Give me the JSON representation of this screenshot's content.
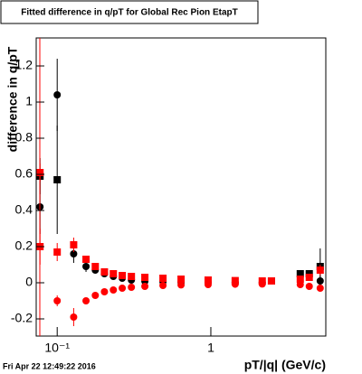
{
  "chart_data": {
    "type": "scatter",
    "title": "Fitted difference in q/pT for Global Rec Pion EtapT",
    "x_label": "pT/|q| (GeV/c)",
    "y_label": "difference in q/pT",
    "timestamp": "Fri Apr 22 12:49:22 2016",
    "log_x": true,
    "xlim": [
      0.073,
      5.6
    ],
    "ylim": [
      -0.295,
      1.355
    ],
    "xticks": [
      {
        "value": 0.1,
        "label": "10⁻¹"
      },
      1
    ],
    "yticks": [
      -0.2,
      0,
      0.2,
      0.4,
      0.6,
      0.8,
      1,
      1.2
    ],
    "series": [
      {
        "color": "#000000",
        "marker": "circle",
        "x": [
          0.0773,
          0.1,
          0.128,
          0.154,
          0.177,
          0.203,
          0.232,
          0.265,
          0.304,
          0.372,
          0.488,
          0.64,
          0.96,
          1.44,
          2.16,
          5.15
        ],
        "values": [
          0.42,
          1.04,
          0.16,
          0.09,
          0.07,
          0.05,
          0.035,
          0.025,
          0.015,
          0.008,
          0.005,
          0.003,
          0.001,
          0.001,
          0.002,
          0.01
        ],
        "errors": [
          0.15,
          0.2,
          0.05,
          0.03,
          0.02,
          0.015,
          0.01,
          0.008,
          0.005,
          0.004,
          0.003,
          0.003,
          0.002,
          0.002,
          0.003,
          0.05
        ]
      },
      {
        "color": "#000000",
        "marker": "square",
        "x": [
          0.0773,
          0.1,
          2.48,
          3.82,
          4.37,
          5.15
        ],
        "values": [
          0.59,
          0.57,
          0.01,
          0.05,
          0.05,
          0.09
        ],
        "errors": [
          0.1,
          0.3,
          0.005,
          0.02,
          0.02,
          0.1
        ]
      },
      {
        "color": "#ff0000",
        "marker": "square",
        "x": [
          0.0773,
          0.0773,
          0.1,
          0.128,
          0.154,
          0.177,
          0.203,
          0.232,
          0.265,
          0.304,
          0.372,
          0.488,
          0.64,
          0.96,
          1.44,
          2.16,
          2.48,
          3.82,
          4.37,
          5.15
        ],
        "values": [
          0.61,
          0.2,
          0.17,
          0.21,
          0.13,
          0.09,
          0.06,
          0.05,
          0.04,
          0.035,
          0.03,
          0.025,
          0.02,
          0.015,
          0.012,
          0.01,
          0.01,
          0.02,
          0.03,
          0.07
        ],
        "errors": [
          0.05,
          0.1,
          0.05,
          0.04,
          0.02,
          0.015,
          0.01,
          0.008,
          0.006,
          0.005,
          0.004,
          0.004,
          0.003,
          0.003,
          0.003,
          0.003,
          0.003,
          0.01,
          0.01,
          0.03
        ]
      },
      {
        "color": "#ff0000",
        "marker": "circle",
        "x": [
          0.1,
          0.128,
          0.154,
          0.177,
          0.203,
          0.232,
          0.265,
          0.304,
          0.372,
          0.488,
          0.64,
          0.96,
          1.44,
          2.16,
          3.82,
          4.37,
          5.15
        ],
        "values": [
          -0.1,
          -0.19,
          -0.1,
          -0.07,
          -0.05,
          -0.04,
          -0.03,
          -0.025,
          -0.02,
          -0.015,
          -0.012,
          -0.01,
          -0.008,
          -0.007,
          -0.01,
          -0.02,
          -0.03
        ],
        "errors": [
          0.03,
          0.05,
          0.02,
          0.015,
          0.01,
          0.008,
          0.006,
          0.005,
          0.004,
          0.004,
          0.003,
          0.003,
          0.003,
          0.003,
          0.01,
          0.01,
          0.02
        ]
      }
    ]
  }
}
